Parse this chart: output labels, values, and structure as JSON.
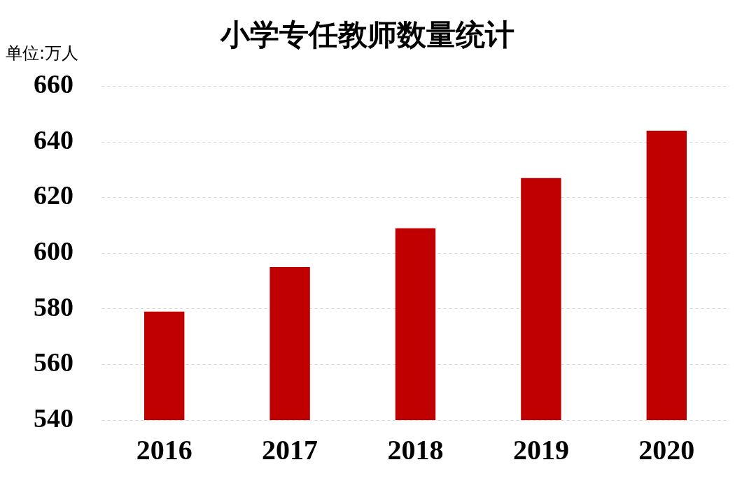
{
  "chart_data": {
    "type": "bar",
    "title": "小学专任教师数量统计",
    "ylabel": "单位:万人",
    "categories": [
      "2016",
      "2017",
      "2018",
      "2019",
      "2020"
    ],
    "values": [
      579,
      595,
      609,
      627,
      644
    ],
    "color": "#c00000",
    "ylim": [
      540,
      660
    ],
    "yticks": [
      540,
      560,
      580,
      600,
      620,
      640,
      660
    ],
    "grid": "y",
    "legend": false
  }
}
